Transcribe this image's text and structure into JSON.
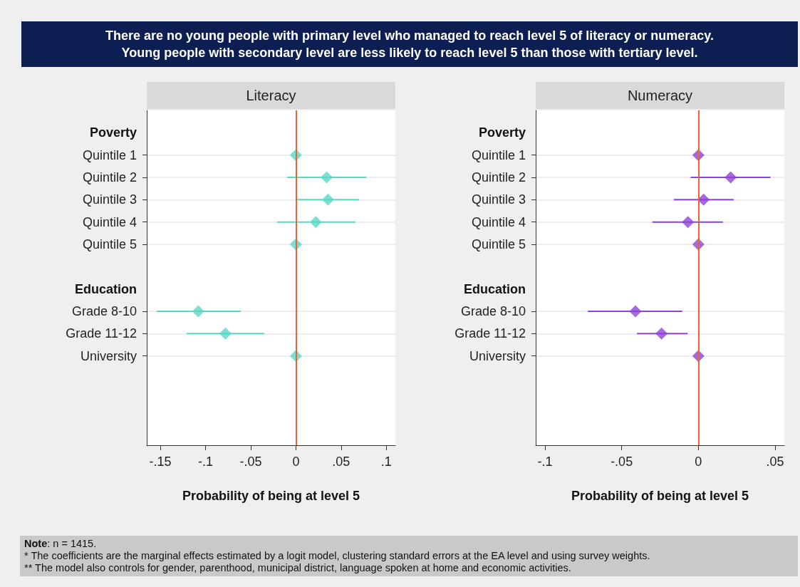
{
  "chart_data": [
    {
      "type": "scatter",
      "orientation": "horizontal",
      "title": "Literacy",
      "annotations": [
        "There are no young people with primary level who managed to reach level 5 of literacy or numeracy.",
        "Young people with secondary level are less likely to reach level 5 than those with tertiary level."
      ],
      "categories": [
        null,
        "Poverty",
        "Quintile 1",
        "Quintile 2",
        "Quintile 3",
        "Quintile 4",
        "Quintile 5",
        null,
        "Education",
        "Grade 8-10",
        "Grade 11-12",
        "University",
        null,
        null,
        null,
        null
      ],
      "series": [
        {
          "color": "#5dd6c6",
          "values": [
            null,
            null,
            0,
            0.034,
            0.0355,
            0.022,
            0,
            null,
            null,
            -0.108,
            -0.078,
            0,
            null,
            null,
            null,
            null
          ],
          "errors": [
            null,
            null,
            null,
            [
              -0.0095,
              0.078
            ],
            [
              0.001,
              0.07
            ],
            [
              -0.0205,
              0.0655
            ],
            null,
            null,
            null,
            [
              -0.154,
              -0.061
            ],
            [
              -0.121,
              -0.035
            ],
            null,
            null,
            null,
            null,
            null
          ]
        }
      ],
      "marker": "diamond",
      "grid": "y",
      "xlim": [
        -0.165,
        0.11
      ],
      "xticks": [
        {
          "value": -0.15,
          "label": "-.15"
        },
        {
          "value": -0.1,
          "label": "-.1"
        },
        {
          "value": -0.05,
          "label": "-.05"
        },
        0,
        {
          "value": 0.05,
          "label": ".05"
        },
        {
          "value": 0.1,
          "label": ".1"
        }
      ],
      "xlabel": "Probability of being at level 5",
      "ref_lines": [
        {
          "axis": "x",
          "value": 0,
          "color": "#f0622d"
        }
      ]
    },
    {
      "type": "scatter",
      "orientation": "horizontal",
      "title": "Numeracy",
      "annotations": [
        "Note: n = 1415.",
        "* The coefficients are the marginal effects estimated by a logit model, clustering standard errors at the EA level and using survey weights.",
        "** The model also controls for gender, parenthood, municipal district, language spoken at home and economic activities."
      ],
      "categories": [
        null,
        "Poverty",
        "Quintile 1",
        "Quintile 2",
        "Quintile 3",
        "Quintile 4",
        "Quintile 5",
        null,
        "Education",
        "Grade 8-10",
        "Grade 11-12",
        "University",
        null,
        null,
        null,
        null
      ],
      "series": [
        {
          "color": "#8e44d4",
          "values": [
            null,
            null,
            0,
            0.021,
            0.0034,
            -0.0068,
            0,
            null,
            null,
            -0.041,
            -0.024,
            0,
            null,
            null,
            null,
            null
          ],
          "errors": [
            null,
            null,
            null,
            [
              -0.005,
              0.047
            ],
            [
              -0.016,
              0.023
            ],
            [
              -0.03,
              0.016
            ],
            null,
            null,
            null,
            [
              -0.072,
              -0.0105
            ],
            [
              -0.04,
              -0.007
            ],
            null,
            null,
            null,
            null,
            null
          ]
        }
      ],
      "marker": "diamond",
      "grid": "y",
      "xlim": [
        -0.106,
        0.056
      ],
      "xticks": [
        {
          "value": -0.1,
          "label": "-.1"
        },
        {
          "value": -0.05,
          "label": "-.05"
        },
        0,
        {
          "value": 0.05,
          "label": ".05"
        }
      ],
      "xlabel": "Probability of being at level 5",
      "ref_lines": [
        {
          "axis": "x",
          "value": 0,
          "color": "#f0622d"
        }
      ]
    }
  ]
}
